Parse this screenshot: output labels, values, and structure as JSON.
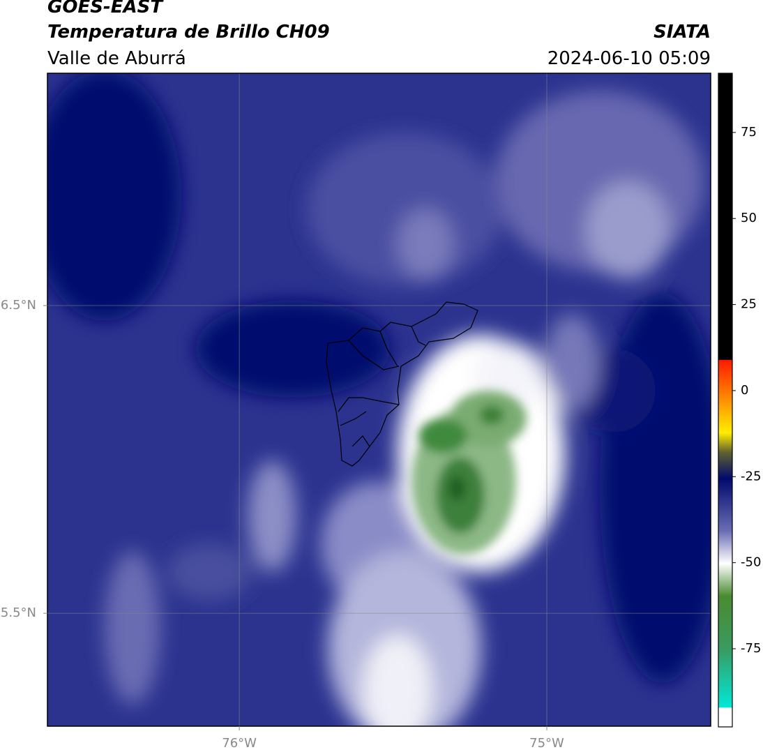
{
  "header": {
    "title": "GOES-EAST",
    "subtitle": "Temperatura de Brillo CH09",
    "region": "Valle de Aburrá",
    "source": "SIATA",
    "datetime": "2024-06-10 05:09"
  },
  "map": {
    "xlim": [
      -76.624,
      -74.467
    ],
    "ylim": [
      5.133,
      7.255
    ],
    "xticks": [
      {
        "value": -76,
        "label": "76°W"
      },
      {
        "value": -75,
        "label": "75°W"
      }
    ],
    "yticks": [
      {
        "value": 6.5,
        "label": "6.5°N"
      },
      {
        "value": 5.5,
        "label": "5.5°N"
      }
    ],
    "grid": true,
    "colorbar": {
      "lim": [
        -97.7,
        92.2
      ],
      "ticks": [
        75,
        50,
        25,
        0,
        -25,
        -50,
        -75
      ]
    }
  }
}
